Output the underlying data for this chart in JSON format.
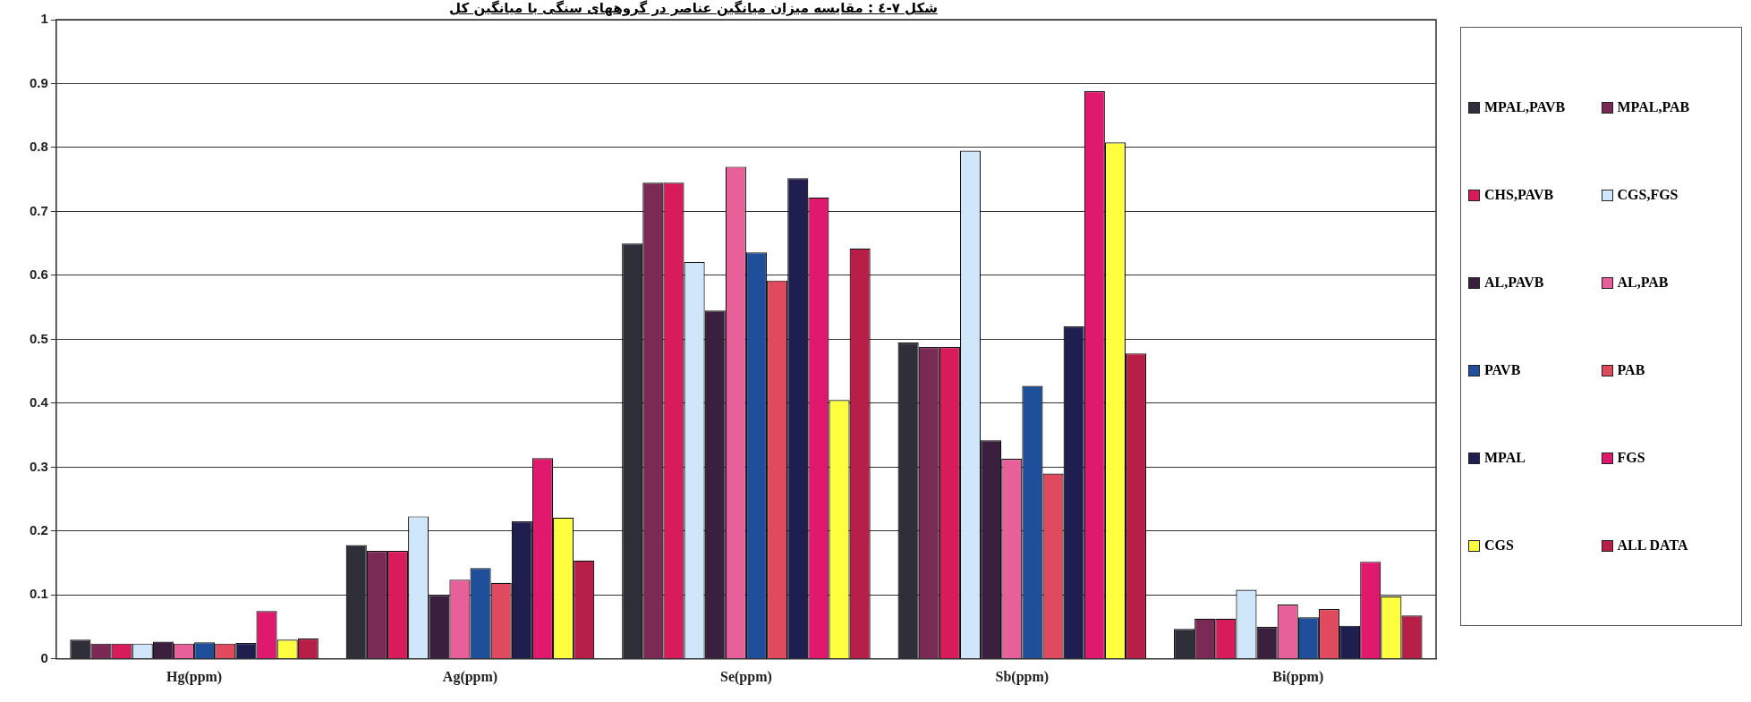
{
  "chart_data": {
    "type": "bar",
    "title": "شکل ٧-٤ : مقایسه میزان میانگین عناصر در گروههای سنگی با میانگین کل",
    "categories": [
      "Hg(ppm)",
      "Ag(ppm)",
      "Se(ppm)",
      "Sb(ppm)",
      "Bi(ppm)"
    ],
    "series": [
      {
        "name": "MPAL,PAVB",
        "color": "#2f2f3a",
        "values": [
          0.03,
          0.178,
          0.65,
          0.495,
          0.047
        ]
      },
      {
        "name": "MPAL,PAB",
        "color": "#7a2a55",
        "values": [
          0.024,
          0.169,
          0.745,
          0.488,
          0.063
        ]
      },
      {
        "name": "CHS,PAVB",
        "color": "#d81b5a",
        "values": [
          0.024,
          0.169,
          0.745,
          0.488,
          0.063
        ]
      },
      {
        "name": "CGS,FGS",
        "color": "#cfe6fb",
        "values": [
          0.024,
          0.223,
          0.621,
          0.795,
          0.108
        ]
      },
      {
        "name": "AL,PAVB",
        "color": "#3b1f3f",
        "values": [
          0.027,
          0.1,
          0.545,
          0.342,
          0.05
        ]
      },
      {
        "name": "AL,PAB",
        "color": "#e8609a",
        "values": [
          0.024,
          0.124,
          0.77,
          0.313,
          0.085
        ]
      },
      {
        "name": "PAVB",
        "color": "#1f4f9a",
        "values": [
          0.026,
          0.142,
          0.636,
          0.427,
          0.065
        ]
      },
      {
        "name": "PAB",
        "color": "#e04a5e",
        "values": [
          0.024,
          0.119,
          0.592,
          0.29,
          0.078
        ]
      },
      {
        "name": "MPAL",
        "color": "#1f1f4f",
        "values": [
          0.025,
          0.215,
          0.752,
          0.52,
          0.052
        ]
      },
      {
        "name": "FGS",
        "color": "#e0186e",
        "values": [
          0.075,
          0.314,
          0.722,
          0.888,
          0.152
        ]
      },
      {
        "name": "CGS",
        "color": "#ffff40",
        "values": [
          0.03,
          0.221,
          0.405,
          0.808,
          0.098
        ]
      },
      {
        "name": "ALL DATA",
        "color": "#b81f48",
        "values": [
          0.032,
          0.154,
          0.642,
          0.478,
          0.068
        ]
      }
    ],
    "ylim": [
      0,
      1
    ],
    "yticks": [
      0,
      0.1,
      0.2,
      0.3,
      0.4,
      0.5,
      0.6,
      0.7,
      0.8,
      0.9,
      1
    ],
    "grid": "y",
    "legend": "right"
  }
}
